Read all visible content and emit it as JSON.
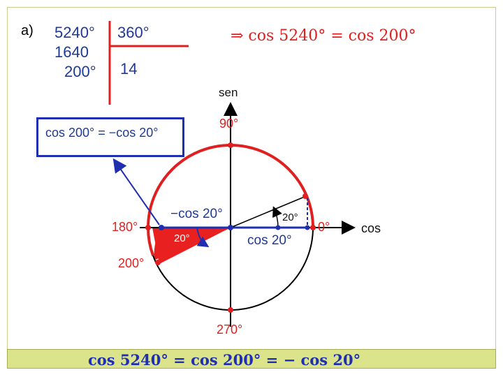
{
  "part_label": "a)",
  "division": {
    "dividend": "5240°",
    "divisor": "360°",
    "partial": "1640",
    "remainder": "200°",
    "quotient": "14"
  },
  "implication": "⇒ cos 5240° = cos 200°",
  "callout": "cos 200° = −cos 20°",
  "circle": {
    "axis_sen": "sen",
    "axis_cos": "cos",
    "angle_0": "0°",
    "angle_90": "90°",
    "angle_180": "180°",
    "angle_200": "200°",
    "angle_270": "270°",
    "neg_cos_label": "−cos 20°",
    "pos_cos_label": "cos 20°",
    "small_angle_right": "20°",
    "small_angle_left": "20°"
  },
  "bottom_equation": "cos 5240° = cos 200° = − cos 20°",
  "colors": {
    "accent_red": "#e02020",
    "blue": "#1f2fb0",
    "footer": "#dbe48a"
  }
}
